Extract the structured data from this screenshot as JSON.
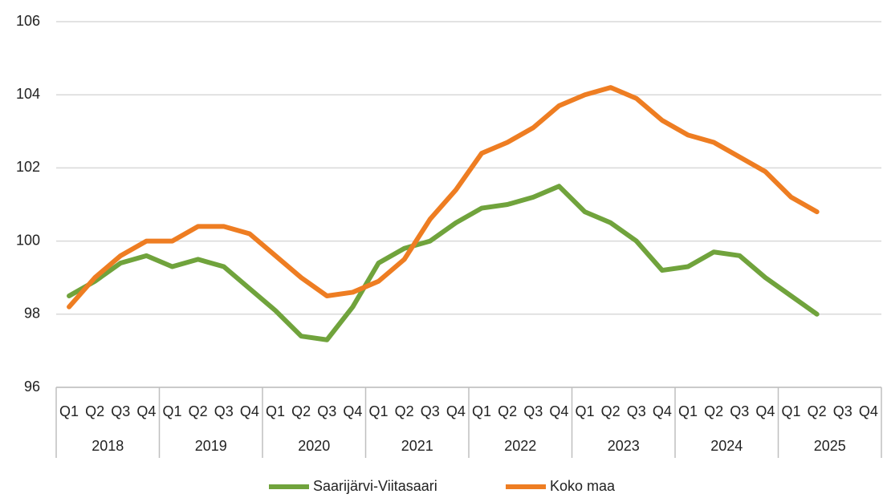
{
  "chart_data": {
    "type": "line",
    "categories": [
      "Q1",
      "Q2",
      "Q3",
      "Q4",
      "Q1",
      "Q2",
      "Q3",
      "Q4",
      "Q1",
      "Q2",
      "Q3",
      "Q4",
      "Q1",
      "Q2",
      "Q3",
      "Q4",
      "Q1",
      "Q2",
      "Q3",
      "Q4",
      "Q1",
      "Q2",
      "Q3",
      "Q4",
      "Q1",
      "Q2",
      "Q3",
      "Q4",
      "Q1",
      "Q2",
      "Q3",
      "Q4"
    ],
    "category_groups": [
      "2018",
      "2019",
      "2020",
      "2021",
      "2022",
      "2023",
      "2024",
      "2025"
    ],
    "series": [
      {
        "name": "Saarijärvi-Viitasaari",
        "color": "#70a33c",
        "values": [
          98.5,
          98.9,
          99.4,
          99.6,
          99.3,
          99.5,
          99.3,
          98.7,
          98.1,
          97.4,
          97.3,
          98.2,
          99.4,
          99.8,
          100.0,
          100.5,
          100.9,
          101.0,
          101.2,
          101.5,
          100.8,
          100.5,
          100.0,
          99.2,
          99.3,
          99.7,
          99.6,
          99.0,
          98.5,
          98.0,
          null,
          null
        ]
      },
      {
        "name": "Koko maa",
        "color": "#ee7d22",
        "values": [
          98.2,
          99.0,
          99.6,
          100.0,
          100.0,
          100.4,
          100.4,
          100.2,
          99.6,
          99.0,
          98.5,
          98.6,
          98.9,
          99.5,
          100.6,
          101.4,
          102.4,
          102.7,
          103.1,
          103.7,
          104.0,
          104.2,
          103.9,
          103.3,
          102.9,
          102.7,
          102.3,
          101.9,
          101.2,
          100.8,
          null,
          null
        ]
      }
    ],
    "ylim": [
      96,
      106
    ],
    "yticks": [
      96,
      98,
      100,
      102,
      104,
      106
    ],
    "grid": true,
    "legend": "bottom"
  }
}
